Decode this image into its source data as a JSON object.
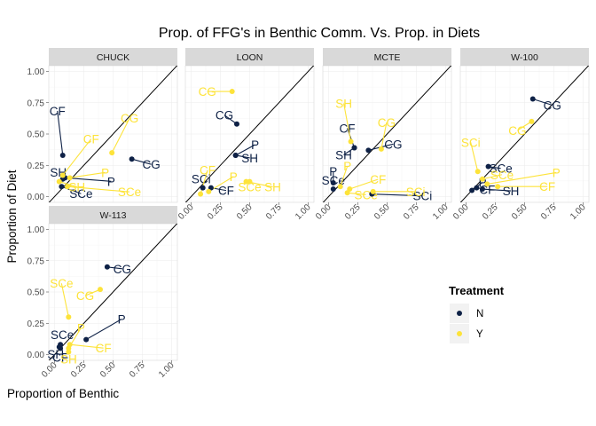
{
  "chart_data": {
    "type": "scatter",
    "title": "Prop. of FFG's in Benthic Comm. Vs. Prop. in Diets",
    "xlabel": "Proportion of Benthic",
    "ylabel": "Proportion of Diet",
    "xlim": [
      0,
      1
    ],
    "ylim": [
      0,
      1
    ],
    "x_ticks": [
      "0.00",
      "0.25",
      "0.50",
      "0.75",
      "1.00"
    ],
    "y_ticks": [
      "0.00",
      "0.25",
      "0.50",
      "0.75",
      "1.00"
    ],
    "reference_line": "y = x",
    "legend": {
      "title": "Treatment",
      "placement": "right",
      "entries": [
        {
          "label": "N",
          "color": "#0e2146"
        },
        {
          "label": "Y",
          "color": "#fde33a"
        }
      ]
    },
    "panels": [
      {
        "name": "CHUCK",
        "points": [
          {
            "label": "CG",
            "treatment": "N",
            "x": 0.66,
            "y": 0.3
          },
          {
            "label": "P",
            "treatment": "N",
            "x": 0.09,
            "y": 0.15
          },
          {
            "label": "SH",
            "treatment": "N",
            "x": 0.07,
            "y": 0.14
          },
          {
            "label": "CF",
            "treatment": "N",
            "x": 0.07,
            "y": 0.33
          },
          {
            "label": "SCe",
            "treatment": "N",
            "x": 0.06,
            "y": 0.08
          },
          {
            "label": "CG",
            "treatment": "Y",
            "x": 0.49,
            "y": 0.35
          },
          {
            "label": "P",
            "treatment": "Y",
            "x": 0.13,
            "y": 0.15
          },
          {
            "label": "CF",
            "treatment": "Y",
            "x": 0.07,
            "y": 0.17
          },
          {
            "label": "SH",
            "treatment": "Y",
            "x": 0.04,
            "y": 0.12
          },
          {
            "label": "SCe",
            "treatment": "Y",
            "x": 0.11,
            "y": 0.08
          }
        ]
      },
      {
        "name": "LOON",
        "points": [
          {
            "label": "CG",
            "treatment": "N",
            "x": 0.39,
            "y": 0.58
          },
          {
            "label": "SH",
            "treatment": "N",
            "x": 0.38,
            "y": 0.33
          },
          {
            "label": "P",
            "treatment": "N",
            "x": 0.38,
            "y": 0.33
          },
          {
            "label": "SCi",
            "treatment": "N",
            "x": 0.1,
            "y": 0.07
          },
          {
            "label": "CF",
            "treatment": "N",
            "x": 0.17,
            "y": 0.07
          },
          {
            "label": "CG",
            "treatment": "Y",
            "x": 0.35,
            "y": 0.84
          },
          {
            "label": "CF",
            "treatment": "Y",
            "x": 0.08,
            "y": 0.02
          },
          {
            "label": "P",
            "treatment": "Y",
            "x": 0.15,
            "y": 0.04
          },
          {
            "label": "SCe",
            "treatment": "Y",
            "x": 0.5,
            "y": 0.12
          },
          {
            "label": "SH",
            "treatment": "Y",
            "x": 0.47,
            "y": 0.12
          }
        ]
      },
      {
        "name": "MCTE",
        "points": [
          {
            "label": "CG",
            "treatment": "N",
            "x": 0.34,
            "y": 0.37
          },
          {
            "label": "CF",
            "treatment": "N",
            "x": 0.22,
            "y": 0.39
          },
          {
            "label": "SH",
            "treatment": "N",
            "x": 0.22,
            "y": 0.39
          },
          {
            "label": "P",
            "treatment": "N",
            "x": 0.04,
            "y": 0.11
          },
          {
            "label": "SCe",
            "treatment": "N",
            "x": 0.04,
            "y": 0.06
          },
          {
            "label": "SCi",
            "treatment": "N",
            "x": 0.37,
            "y": 0.02
          },
          {
            "label": "SH",
            "treatment": "Y",
            "x": 0.19,
            "y": 0.44
          },
          {
            "label": "CG",
            "treatment": "Y",
            "x": 0.45,
            "y": 0.38
          },
          {
            "label": "CF",
            "treatment": "Y",
            "x": 0.18,
            "y": 0.06
          },
          {
            "label": "P",
            "treatment": "Y",
            "x": 0.1,
            "y": 0.08
          },
          {
            "label": "SCe",
            "treatment": "Y",
            "x": 0.16,
            "y": 0.03
          },
          {
            "label": "SCi",
            "treatment": "Y",
            "x": 0.38,
            "y": 0.04
          }
        ]
      },
      {
        "name": "W-100",
        "points": [
          {
            "label": "CG",
            "treatment": "N",
            "x": 0.57,
            "y": 0.78
          },
          {
            "label": "SCe",
            "treatment": "N",
            "x": 0.19,
            "y": 0.24
          },
          {
            "label": "P",
            "treatment": "N",
            "x": 0.05,
            "y": 0.05
          },
          {
            "label": "CF",
            "treatment": "N",
            "x": 0.09,
            "y": 0.07
          },
          {
            "label": "SH",
            "treatment": "N",
            "x": 0.14,
            "y": 0.06
          },
          {
            "label": "CG",
            "treatment": "Y",
            "x": 0.56,
            "y": 0.6
          },
          {
            "label": "SCi",
            "treatment": "Y",
            "x": 0.1,
            "y": 0.2
          },
          {
            "label": "SCe",
            "treatment": "Y",
            "x": 0.14,
            "y": 0.14
          },
          {
            "label": "P",
            "treatment": "Y",
            "x": 0.18,
            "y": 0.1
          },
          {
            "label": "CF",
            "treatment": "Y",
            "x": 0.27,
            "y": 0.08
          }
        ]
      },
      {
        "name": "W-113",
        "points": [
          {
            "label": "CG",
            "treatment": "N",
            "x": 0.45,
            "y": 0.7
          },
          {
            "label": "P",
            "treatment": "N",
            "x": 0.27,
            "y": 0.12
          },
          {
            "label": "SCe",
            "treatment": "N",
            "x": 0.05,
            "y": 0.08
          },
          {
            "label": "CF",
            "treatment": "N",
            "x": 0.05,
            "y": 0.05
          },
          {
            "label": "SH",
            "treatment": "N",
            "x": 0.04,
            "y": 0.06
          },
          {
            "label": "CG",
            "treatment": "Y",
            "x": 0.39,
            "y": 0.52
          },
          {
            "label": "SCe",
            "treatment": "Y",
            "x": 0.12,
            "y": 0.3
          },
          {
            "label": "P",
            "treatment": "Y",
            "x": 0.12,
            "y": 0.05
          },
          {
            "label": "SH",
            "treatment": "Y",
            "x": 0.12,
            "y": 0.02
          },
          {
            "label": "CF",
            "treatment": "Y",
            "x": 0.13,
            "y": 0.08
          }
        ]
      }
    ]
  }
}
